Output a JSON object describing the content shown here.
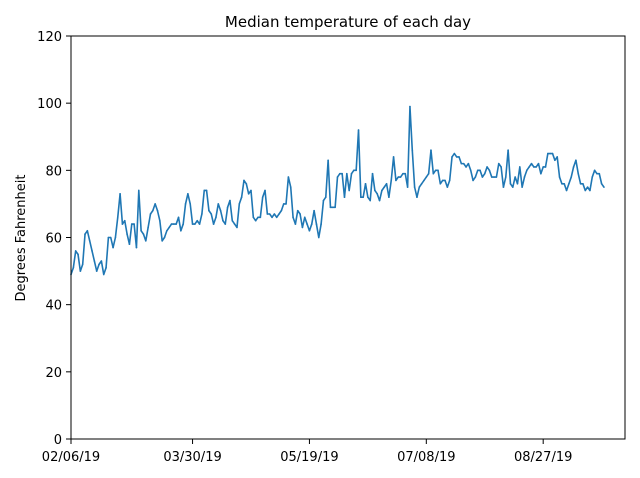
{
  "chart_data": {
    "type": "line",
    "title": "Median temperature of each day",
    "xlabel": "",
    "ylabel": "Degrees Fahrenheit",
    "x_start": "2019-02-06",
    "x_end": "2019-10-01",
    "ylim": [
      0,
      120
    ],
    "yticks": [
      0,
      20,
      40,
      60,
      80,
      100,
      120
    ],
    "xticks": [
      {
        "date": "2019-02-06",
        "label": "02/06/19"
      },
      {
        "date": "2019-03-30",
        "label": "03/30/19"
      },
      {
        "date": "2019-05-19",
        "label": "05/19/19"
      },
      {
        "date": "2019-07-08",
        "label": "07/08/19"
      },
      {
        "date": "2019-08-27",
        "label": "08/27/19"
      }
    ],
    "grid": false,
    "line_color": "#1f77b4",
    "series": [
      {
        "points": [
          [
            "2019-02-06",
            49
          ],
          [
            "2019-02-07",
            51
          ],
          [
            "2019-02-08",
            56
          ],
          [
            "2019-02-09",
            55
          ],
          [
            "2019-02-10",
            50
          ],
          [
            "2019-02-11",
            52
          ],
          [
            "2019-02-12",
            61
          ],
          [
            "2019-02-13",
            62
          ],
          [
            "2019-02-14",
            59
          ],
          [
            "2019-02-15",
            56
          ],
          [
            "2019-02-16",
            53
          ],
          [
            "2019-02-17",
            50
          ],
          [
            "2019-02-18",
            52
          ],
          [
            "2019-02-19",
            53
          ],
          [
            "2019-02-20",
            49
          ],
          [
            "2019-02-21",
            51
          ],
          [
            "2019-02-22",
            60
          ],
          [
            "2019-02-23",
            60
          ],
          [
            "2019-02-24",
            57
          ],
          [
            "2019-02-25",
            60
          ],
          [
            "2019-02-26",
            66
          ],
          [
            "2019-02-27",
            73
          ],
          [
            "2019-02-28",
            64
          ],
          [
            "2019-03-01",
            65
          ],
          [
            "2019-03-02",
            61
          ],
          [
            "2019-03-03",
            58
          ],
          [
            "2019-03-04",
            64
          ],
          [
            "2019-03-05",
            64
          ],
          [
            "2019-03-06",
            57
          ],
          [
            "2019-03-07",
            74
          ],
          [
            "2019-03-08",
            62
          ],
          [
            "2019-03-09",
            61
          ],
          [
            "2019-03-10",
            59
          ],
          [
            "2019-03-11",
            63
          ],
          [
            "2019-03-12",
            67
          ],
          [
            "2019-03-13",
            68
          ],
          [
            "2019-03-14",
            70
          ],
          [
            "2019-03-15",
            68
          ],
          [
            "2019-03-16",
            65
          ],
          [
            "2019-03-17",
            59
          ],
          [
            "2019-03-18",
            60
          ],
          [
            "2019-03-19",
            62
          ],
          [
            "2019-03-20",
            63
          ],
          [
            "2019-03-21",
            64
          ],
          [
            "2019-03-22",
            64
          ],
          [
            "2019-03-23",
            64
          ],
          [
            "2019-03-24",
            66
          ],
          [
            "2019-03-25",
            62
          ],
          [
            "2019-03-26",
            64
          ],
          [
            "2019-03-27",
            70
          ],
          [
            "2019-03-28",
            73
          ],
          [
            "2019-03-29",
            70
          ],
          [
            "2019-03-30",
            64
          ],
          [
            "2019-03-31",
            64
          ],
          [
            "2019-04-01",
            65
          ],
          [
            "2019-04-02",
            64
          ],
          [
            "2019-04-03",
            67
          ],
          [
            "2019-04-04",
            74
          ],
          [
            "2019-04-05",
            74
          ],
          [
            "2019-04-06",
            68
          ],
          [
            "2019-04-07",
            67
          ],
          [
            "2019-04-08",
            64
          ],
          [
            "2019-04-09",
            66
          ],
          [
            "2019-04-10",
            70
          ],
          [
            "2019-04-11",
            68
          ],
          [
            "2019-04-12",
            65
          ],
          [
            "2019-04-13",
            64
          ],
          [
            "2019-04-14",
            69
          ],
          [
            "2019-04-15",
            71
          ],
          [
            "2019-04-16",
            65
          ],
          [
            "2019-04-17",
            64
          ],
          [
            "2019-04-18",
            63
          ],
          [
            "2019-04-19",
            70
          ],
          [
            "2019-04-20",
            72
          ],
          [
            "2019-04-21",
            77
          ],
          [
            "2019-04-22",
            76
          ],
          [
            "2019-04-23",
            73
          ],
          [
            "2019-04-24",
            74
          ],
          [
            "2019-04-25",
            66
          ],
          [
            "2019-04-26",
            65
          ],
          [
            "2019-04-27",
            66
          ],
          [
            "2019-04-28",
            66
          ],
          [
            "2019-04-29",
            72
          ],
          [
            "2019-04-30",
            74
          ],
          [
            "2019-05-01",
            67
          ],
          [
            "2019-05-02",
            67
          ],
          [
            "2019-05-03",
            66
          ],
          [
            "2019-05-04",
            67
          ],
          [
            "2019-05-05",
            66
          ],
          [
            "2019-05-06",
            67
          ],
          [
            "2019-05-07",
            68
          ],
          [
            "2019-05-08",
            70
          ],
          [
            "2019-05-09",
            70
          ],
          [
            "2019-05-10",
            78
          ],
          [
            "2019-05-11",
            75
          ],
          [
            "2019-05-12",
            66
          ],
          [
            "2019-05-13",
            64
          ],
          [
            "2019-05-14",
            68
          ],
          [
            "2019-05-15",
            67
          ],
          [
            "2019-05-16",
            63
          ],
          [
            "2019-05-17",
            66
          ],
          [
            "2019-05-18",
            64
          ],
          [
            "2019-05-19",
            62
          ],
          [
            "2019-05-20",
            64
          ],
          [
            "2019-05-21",
            68
          ],
          [
            "2019-05-22",
            64
          ],
          [
            "2019-05-23",
            60
          ],
          [
            "2019-05-24",
            64
          ],
          [
            "2019-05-25",
            71
          ],
          [
            "2019-05-26",
            72
          ],
          [
            "2019-05-27",
            83
          ],
          [
            "2019-05-28",
            69
          ],
          [
            "2019-05-29",
            69
          ],
          [
            "2019-05-30",
            69
          ],
          [
            "2019-05-31",
            78
          ],
          [
            "2019-06-01",
            79
          ],
          [
            "2019-06-02",
            79
          ],
          [
            "2019-06-03",
            72
          ],
          [
            "2019-06-04",
            79
          ],
          [
            "2019-06-05",
            74
          ],
          [
            "2019-06-06",
            79
          ],
          [
            "2019-06-07",
            80
          ],
          [
            "2019-06-08",
            80
          ],
          [
            "2019-06-09",
            92
          ],
          [
            "2019-06-10",
            72
          ],
          [
            "2019-06-11",
            72
          ],
          [
            "2019-06-12",
            76
          ],
          [
            "2019-06-13",
            72
          ],
          [
            "2019-06-14",
            71
          ],
          [
            "2019-06-15",
            79
          ],
          [
            "2019-06-16",
            74
          ],
          [
            "2019-06-17",
            73
          ],
          [
            "2019-06-18",
            71
          ],
          [
            "2019-06-19",
            74
          ],
          [
            "2019-06-20",
            75
          ],
          [
            "2019-06-21",
            76
          ],
          [
            "2019-06-22",
            72
          ],
          [
            "2019-06-23",
            77
          ],
          [
            "2019-06-24",
            84
          ],
          [
            "2019-06-25",
            77
          ],
          [
            "2019-06-26",
            78
          ],
          [
            "2019-06-27",
            78
          ],
          [
            "2019-06-28",
            79
          ],
          [
            "2019-06-29",
            79
          ],
          [
            "2019-06-30",
            75
          ],
          [
            "2019-07-01",
            99
          ],
          [
            "2019-07-02",
            86
          ],
          [
            "2019-07-03",
            75
          ],
          [
            "2019-07-04",
            72
          ],
          [
            "2019-07-05",
            75
          ],
          [
            "2019-07-06",
            76
          ],
          [
            "2019-07-07",
            77
          ],
          [
            "2019-07-08",
            78
          ],
          [
            "2019-07-09",
            79
          ],
          [
            "2019-07-10",
            86
          ],
          [
            "2019-07-11",
            79
          ],
          [
            "2019-07-12",
            80
          ],
          [
            "2019-07-13",
            80
          ],
          [
            "2019-07-14",
            76
          ],
          [
            "2019-07-15",
            77
          ],
          [
            "2019-07-16",
            77
          ],
          [
            "2019-07-17",
            75
          ],
          [
            "2019-07-18",
            77
          ],
          [
            "2019-07-19",
            84
          ],
          [
            "2019-07-20",
            85
          ],
          [
            "2019-07-21",
            84
          ],
          [
            "2019-07-22",
            84
          ],
          [
            "2019-07-23",
            82
          ],
          [
            "2019-07-24",
            82
          ],
          [
            "2019-07-25",
            81
          ],
          [
            "2019-07-26",
            82
          ],
          [
            "2019-07-27",
            80
          ],
          [
            "2019-07-28",
            77
          ],
          [
            "2019-07-29",
            78
          ],
          [
            "2019-07-30",
            80
          ],
          [
            "2019-07-31",
            80
          ],
          [
            "2019-08-01",
            78
          ],
          [
            "2019-08-02",
            79
          ],
          [
            "2019-08-03",
            81
          ],
          [
            "2019-08-04",
            80
          ],
          [
            "2019-08-05",
            78
          ],
          [
            "2019-08-06",
            78
          ],
          [
            "2019-08-07",
            78
          ],
          [
            "2019-08-08",
            82
          ],
          [
            "2019-08-09",
            81
          ],
          [
            "2019-08-10",
            75
          ],
          [
            "2019-08-11",
            78
          ],
          [
            "2019-08-12",
            86
          ],
          [
            "2019-08-13",
            76
          ],
          [
            "2019-08-14",
            75
          ],
          [
            "2019-08-15",
            78
          ],
          [
            "2019-08-16",
            76
          ],
          [
            "2019-08-17",
            81
          ],
          [
            "2019-08-18",
            75
          ],
          [
            "2019-08-19",
            78
          ],
          [
            "2019-08-20",
            80
          ],
          [
            "2019-08-21",
            81
          ],
          [
            "2019-08-22",
            82
          ],
          [
            "2019-08-23",
            81
          ],
          [
            "2019-08-24",
            81
          ],
          [
            "2019-08-25",
            82
          ],
          [
            "2019-08-26",
            79
          ],
          [
            "2019-08-27",
            81
          ],
          [
            "2019-08-28",
            81
          ],
          [
            "2019-08-29",
            85
          ],
          [
            "2019-08-30",
            85
          ],
          [
            "2019-08-31",
            85
          ],
          [
            "2019-09-01",
            83
          ],
          [
            "2019-09-02",
            84
          ],
          [
            "2019-09-03",
            78
          ],
          [
            "2019-09-04",
            76
          ],
          [
            "2019-09-05",
            76
          ],
          [
            "2019-09-06",
            74
          ],
          [
            "2019-09-07",
            76
          ],
          [
            "2019-09-08",
            78
          ],
          [
            "2019-09-09",
            81
          ],
          [
            "2019-09-10",
            83
          ],
          [
            "2019-09-11",
            79
          ],
          [
            "2019-09-12",
            76
          ],
          [
            "2019-09-13",
            76
          ],
          [
            "2019-09-14",
            74
          ],
          [
            "2019-09-15",
            75
          ],
          [
            "2019-09-16",
            74
          ],
          [
            "2019-09-17",
            78
          ],
          [
            "2019-09-18",
            80
          ],
          [
            "2019-09-19",
            79
          ],
          [
            "2019-09-20",
            79
          ],
          [
            "2019-09-21",
            76
          ],
          [
            "2019-09-22",
            75
          ]
        ]
      }
    ]
  }
}
